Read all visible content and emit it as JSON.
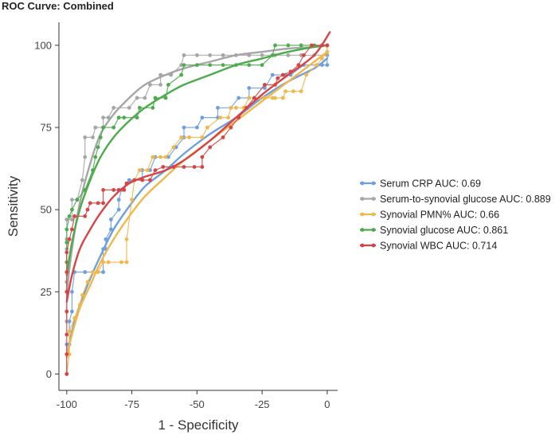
{
  "chart_data": {
    "type": "line",
    "title": "ROC Curve: Combined",
    "xlabel": "1 - Specificity",
    "ylabel": "Sensitivity",
    "xlim": [
      -103,
      4
    ],
    "ylim": [
      -5,
      107
    ],
    "x_ticks": [
      -100,
      -75,
      -50,
      -25,
      0
    ],
    "y_ticks": [
      0,
      25,
      50,
      75,
      100
    ],
    "legend_position": "right",
    "series": [
      {
        "name": "Serum CRP",
        "label": "Serum CRP AUC: 0.69",
        "auc": 0.69,
        "color": "#6f9fe0",
        "step_points": [
          [
            -100,
            0
          ],
          [
            -100,
            9
          ],
          [
            -99,
            9
          ],
          [
            -99,
            16
          ],
          [
            -98,
            19
          ],
          [
            -98,
            25
          ],
          [
            -97,
            31
          ],
          [
            -93,
            31
          ],
          [
            -86,
            31
          ],
          [
            -86,
            38
          ],
          [
            -85,
            38
          ],
          [
            -85,
            41
          ],
          [
            -83,
            44
          ],
          [
            -83,
            47
          ],
          [
            -80,
            50
          ],
          [
            -80,
            53
          ],
          [
            -79,
            56
          ],
          [
            -76,
            59
          ],
          [
            -71,
            59
          ],
          [
            -71,
            62
          ],
          [
            -68,
            62
          ],
          [
            -66,
            66
          ],
          [
            -61,
            66
          ],
          [
            -58,
            69
          ],
          [
            -55,
            72
          ],
          [
            -55,
            75
          ],
          [
            -50,
            75
          ],
          [
            -48,
            78
          ],
          [
            -42,
            78
          ],
          [
            -42,
            81
          ],
          [
            -37,
            81
          ],
          [
            -34,
            84
          ],
          [
            -30,
            84
          ],
          [
            -30,
            87
          ],
          [
            -24,
            87
          ],
          [
            -21,
            91
          ],
          [
            -16,
            91
          ],
          [
            -14,
            91
          ],
          [
            -9,
            94
          ],
          [
            -4,
            94
          ],
          [
            -2,
            94
          ],
          [
            0,
            94
          ],
          [
            0,
            97
          ]
        ],
        "smooth": [
          [
            -100,
            5
          ],
          [
            -98,
            13
          ],
          [
            -95,
            21
          ],
          [
            -91,
            29
          ],
          [
            -87,
            36
          ],
          [
            -82,
            44
          ],
          [
            -76,
            51
          ],
          [
            -70,
            57
          ],
          [
            -62,
            62
          ],
          [
            -55,
            67
          ],
          [
            -45,
            73
          ],
          [
            -35,
            78
          ],
          [
            -25,
            84
          ],
          [
            -15,
            89
          ],
          [
            -5,
            93
          ],
          [
            0,
            96
          ]
        ]
      },
      {
        "name": "Serum-to-synovial glucose",
        "label": "Serum-to-synovial glucose AUC: 0.889",
        "auc": 0.889,
        "color": "#a6a6a6",
        "step_points": [
          [
            -100,
            16
          ],
          [
            -100,
            28
          ],
          [
            -100,
            38
          ],
          [
            -100,
            41
          ],
          [
            -100,
            47
          ],
          [
            -98,
            47
          ],
          [
            -98,
            53
          ],
          [
            -96,
            53
          ],
          [
            -94,
            59
          ],
          [
            -93,
            66
          ],
          [
            -93,
            72
          ],
          [
            -90,
            72
          ],
          [
            -89,
            75
          ],
          [
            -86,
            75
          ],
          [
            -86,
            78
          ],
          [
            -84,
            78
          ],
          [
            -82,
            81
          ],
          [
            -76,
            81
          ],
          [
            -73,
            84
          ],
          [
            -70,
            84
          ],
          [
            -68,
            88
          ],
          [
            -64,
            88
          ],
          [
            -64,
            91
          ],
          [
            -60,
            91
          ],
          [
            -56,
            94
          ],
          [
            -55,
            97
          ],
          [
            -50,
            97
          ],
          [
            -45,
            97
          ],
          [
            -40,
            97
          ],
          [
            -35,
            97
          ],
          [
            -30,
            97
          ],
          [
            -25,
            97
          ],
          [
            -20,
            97
          ],
          [
            -15,
            97
          ],
          [
            -10,
            97
          ],
          [
            -5,
            97
          ],
          [
            0,
            97
          ],
          [
            0,
            100
          ]
        ],
        "smooth": [
          [
            -100,
            25
          ],
          [
            -98,
            38
          ],
          [
            -95,
            52
          ],
          [
            -91,
            64
          ],
          [
            -87,
            73
          ],
          [
            -82,
            79
          ],
          [
            -76,
            84
          ],
          [
            -70,
            88
          ],
          [
            -62,
            91
          ],
          [
            -55,
            93
          ],
          [
            -45,
            95
          ],
          [
            -35,
            97
          ],
          [
            -25,
            98
          ],
          [
            -15,
            99
          ],
          [
            -5,
            99.5
          ],
          [
            0,
            100
          ]
        ]
      },
      {
        "name": "Synovial PMN%",
        "label": "Synovial PMN% AUC: 0.66",
        "auc": 0.66,
        "color": "#f0b84a",
        "step_points": [
          [
            -100,
            0
          ],
          [
            -99,
            6
          ],
          [
            -99,
            13
          ],
          [
            -97,
            17
          ],
          [
            -95,
            21
          ],
          [
            -94,
            24
          ],
          [
            -92,
            28
          ],
          [
            -90,
            31
          ],
          [
            -88,
            31
          ],
          [
            -86,
            34
          ],
          [
            -84,
            34
          ],
          [
            -79,
            34
          ],
          [
            -77,
            34
          ],
          [
            -77,
            41
          ],
          [
            -75,
            53
          ],
          [
            -74,
            59
          ],
          [
            -72,
            62
          ],
          [
            -69,
            62
          ],
          [
            -67,
            66
          ],
          [
            -64,
            66
          ],
          [
            -62,
            66
          ],
          [
            -59,
            69
          ],
          [
            -56,
            72
          ],
          [
            -53,
            72
          ],
          [
            -48,
            72
          ],
          [
            -46,
            75
          ],
          [
            -41,
            78
          ],
          [
            -38,
            78
          ],
          [
            -37,
            81
          ],
          [
            -35,
            81
          ],
          [
            -32,
            81
          ],
          [
            -30,
            84
          ],
          [
            -26,
            84
          ],
          [
            -24,
            84
          ],
          [
            -21,
            84
          ],
          [
            -20,
            84
          ],
          [
            -17,
            84
          ],
          [
            -16,
            86
          ],
          [
            -13,
            86
          ],
          [
            -10,
            86
          ],
          [
            -8,
            91
          ],
          [
            -4,
            94
          ],
          [
            -2,
            96
          ],
          [
            0,
            98
          ],
          [
            0,
            100
          ]
        ],
        "smooth": [
          [
            -100,
            5
          ],
          [
            -98,
            12
          ],
          [
            -95,
            20
          ],
          [
            -91,
            27
          ],
          [
            -87,
            34
          ],
          [
            -82,
            41
          ],
          [
            -76,
            48
          ],
          [
            -70,
            54
          ],
          [
            -62,
            60
          ],
          [
            -55,
            65
          ],
          [
            -45,
            71
          ],
          [
            -35,
            77
          ],
          [
            -25,
            83
          ],
          [
            -15,
            89
          ],
          [
            -5,
            95
          ],
          [
            0,
            98
          ]
        ]
      },
      {
        "name": "Synovial glucose",
        "label": "Synovial glucose AUC: 0.861",
        "auc": 0.861,
        "color": "#4cab4c",
        "step_points": [
          [
            -100,
            34
          ],
          [
            -100,
            40
          ],
          [
            -100,
            44
          ],
          [
            -99,
            48
          ],
          [
            -98,
            50
          ],
          [
            -96,
            53
          ],
          [
            -93,
            56
          ],
          [
            -90,
            62
          ],
          [
            -89,
            66
          ],
          [
            -88,
            69
          ],
          [
            -87,
            72
          ],
          [
            -86,
            75
          ],
          [
            -82,
            75
          ],
          [
            -80,
            78
          ],
          [
            -78,
            78
          ],
          [
            -73,
            78
          ],
          [
            -72,
            81
          ],
          [
            -67,
            81
          ],
          [
            -66,
            84
          ],
          [
            -62,
            84
          ],
          [
            -61,
            88
          ],
          [
            -56,
            91
          ],
          [
            -55,
            94
          ],
          [
            -50,
            94
          ],
          [
            -45,
            94
          ],
          [
            -40,
            94
          ],
          [
            -35,
            94
          ],
          [
            -30,
            94
          ],
          [
            -25,
            94
          ],
          [
            -21,
            97
          ],
          [
            -20,
            100
          ],
          [
            -15,
            100
          ],
          [
            -10,
            100
          ],
          [
            -5,
            100
          ],
          [
            0,
            100
          ]
        ],
        "smooth": [
          [
            -100,
            30
          ],
          [
            -98,
            40
          ],
          [
            -95,
            50
          ],
          [
            -91,
            59
          ],
          [
            -87,
            66
          ],
          [
            -82,
            72
          ],
          [
            -76,
            77
          ],
          [
            -70,
            81
          ],
          [
            -62,
            85
          ],
          [
            -55,
            88
          ],
          [
            -45,
            91
          ],
          [
            -35,
            94
          ],
          [
            -25,
            96
          ],
          [
            -15,
            98
          ],
          [
            -5,
            99.5
          ],
          [
            0,
            100
          ]
        ]
      },
      {
        "name": "Synovial WBC",
        "label": "Synovial WBC AUC: 0.714",
        "auc": 0.714,
        "color": "#d64545",
        "step_points": [
          [
            -100,
            0
          ],
          [
            -100,
            6
          ],
          [
            -100,
            12
          ],
          [
            -100,
            19
          ],
          [
            -100,
            25
          ],
          [
            -100,
            31
          ],
          [
            -100,
            37
          ],
          [
            -99,
            41
          ],
          [
            -98,
            44
          ],
          [
            -97,
            48
          ],
          [
            -93,
            48
          ],
          [
            -92,
            50
          ],
          [
            -91,
            52
          ],
          [
            -88,
            52
          ],
          [
            -86,
            52
          ],
          [
            -86,
            56
          ],
          [
            -82,
            56
          ],
          [
            -80,
            56
          ],
          [
            -78,
            56
          ],
          [
            -77,
            58
          ],
          [
            -74,
            59
          ],
          [
            -71,
            59
          ],
          [
            -68,
            59
          ],
          [
            -66,
            62
          ],
          [
            -63,
            63
          ],
          [
            -59,
            63
          ],
          [
            -55,
            63
          ],
          [
            -51,
            63
          ],
          [
            -48,
            63
          ],
          [
            -48,
            66
          ],
          [
            -45,
            69
          ],
          [
            -40,
            72
          ],
          [
            -37,
            75
          ],
          [
            -34,
            78
          ],
          [
            -31,
            81
          ],
          [
            -28,
            84
          ],
          [
            -24,
            88
          ],
          [
            -20,
            88
          ],
          [
            -19,
            90
          ],
          [
            -17,
            91
          ],
          [
            -14,
            92
          ],
          [
            -11,
            94
          ],
          [
            -9,
            97
          ],
          [
            -6,
            100
          ],
          [
            -2,
            100
          ],
          [
            0,
            100
          ]
        ],
        "smooth": [
          [
            -100,
            22
          ],
          [
            -98,
            30
          ],
          [
            -95,
            38
          ],
          [
            -91,
            44
          ],
          [
            -87,
            49
          ],
          [
            -82,
            54
          ],
          [
            -76,
            58
          ],
          [
            -70,
            60
          ],
          [
            -62,
            62
          ],
          [
            -55,
            65
          ],
          [
            -45,
            71
          ],
          [
            -35,
            78
          ],
          [
            -25,
            85
          ],
          [
            -15,
            91
          ],
          [
            -5,
            97
          ],
          [
            1,
            104
          ]
        ]
      }
    ]
  }
}
